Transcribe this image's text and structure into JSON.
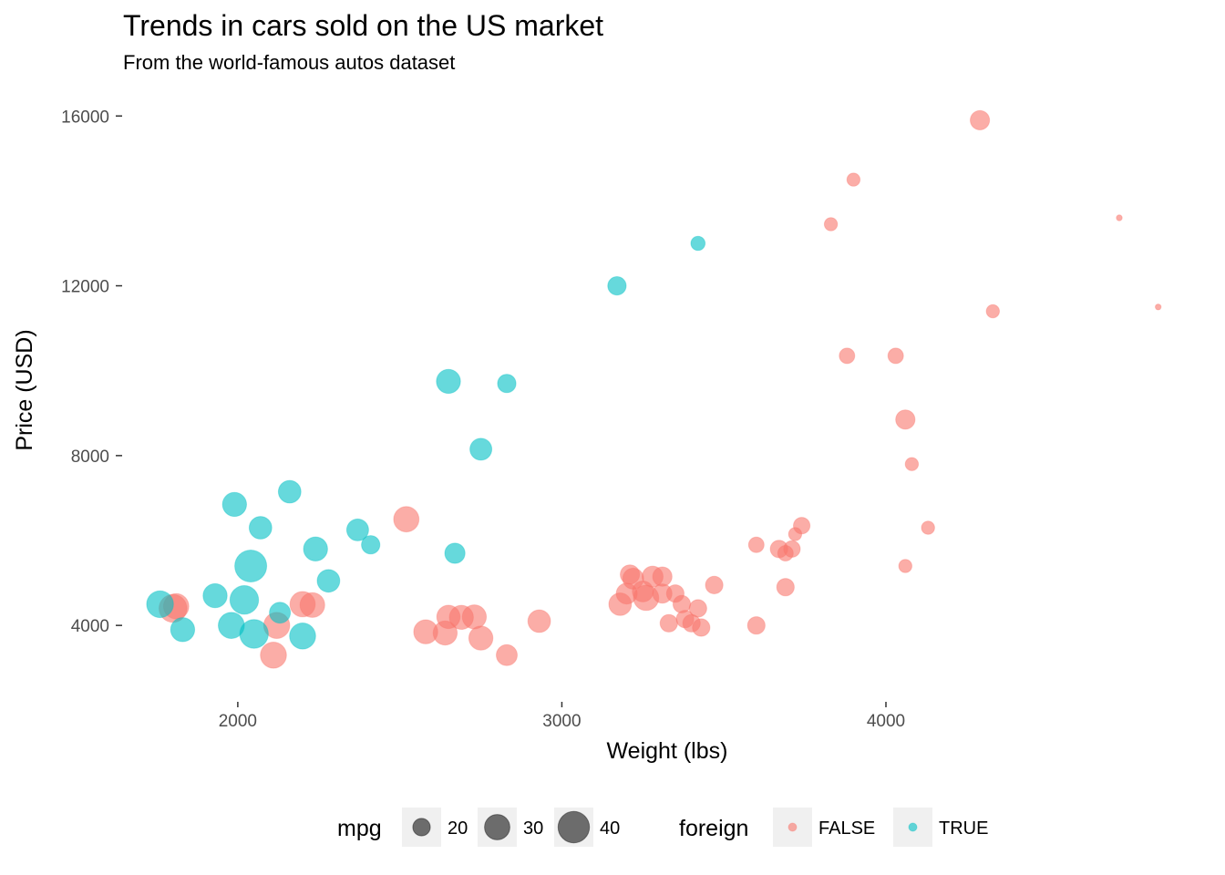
{
  "chart_data": {
    "type": "scatter",
    "title": "Trends in cars sold on the US market",
    "subtitle": "From the world-famous autos dataset",
    "xlabel": "Weight (lbs)",
    "ylabel": "Price (USD)",
    "xlim": [
      1660,
      4900
    ],
    "ylim": [
      2200,
      16800
    ],
    "x_ticks": [
      2000,
      3000,
      4000
    ],
    "y_ticks": [
      4000,
      8000,
      12000,
      16000
    ],
    "grid": false,
    "legend_position": "bottom",
    "size_legend": {
      "title": "mpg",
      "values": [
        20,
        30,
        40
      ]
    },
    "color_legend": {
      "title": "foreign",
      "entries": [
        {
          "label": "FALSE",
          "color": "#F8766D"
        },
        {
          "label": "TRUE",
          "color": "#00BFC4"
        }
      ]
    },
    "series": [
      {
        "name": "FALSE",
        "color": "#F8766D",
        "points": [
          {
            "x": 1800,
            "y": 4400,
            "mpg": 34
          },
          {
            "x": 1810,
            "y": 4450,
            "mpg": 30
          },
          {
            "x": 2110,
            "y": 3300,
            "mpg": 31
          },
          {
            "x": 2120,
            "y": 4000,
            "mpg": 31
          },
          {
            "x": 2200,
            "y": 4500,
            "mpg": 30
          },
          {
            "x": 2230,
            "y": 4480,
            "mpg": 29
          },
          {
            "x": 2520,
            "y": 6500,
            "mpg": 30
          },
          {
            "x": 2580,
            "y": 3850,
            "mpg": 28
          },
          {
            "x": 2640,
            "y": 3820,
            "mpg": 28
          },
          {
            "x": 2650,
            "y": 4200,
            "mpg": 27
          },
          {
            "x": 2690,
            "y": 4190,
            "mpg": 28
          },
          {
            "x": 2730,
            "y": 4200,
            "mpg": 28
          },
          {
            "x": 2750,
            "y": 3700,
            "mpg": 28
          },
          {
            "x": 2830,
            "y": 3300,
            "mpg": 24
          },
          {
            "x": 2930,
            "y": 4100,
            "mpg": 26
          },
          {
            "x": 3180,
            "y": 4500,
            "mpg": 26
          },
          {
            "x": 3200,
            "y": 4750,
            "mpg": 24
          },
          {
            "x": 3210,
            "y": 5200,
            "mpg": 22
          },
          {
            "x": 3220,
            "y": 5100,
            "mpg": 24
          },
          {
            "x": 3250,
            "y": 4800,
            "mpg": 24
          },
          {
            "x": 3260,
            "y": 4650,
            "mpg": 30
          },
          {
            "x": 3280,
            "y": 5150,
            "mpg": 24
          },
          {
            "x": 3310,
            "y": 4750,
            "mpg": 22
          },
          {
            "x": 3310,
            "y": 5150,
            "mpg": 22
          },
          {
            "x": 3330,
            "y": 4050,
            "mpg": 20
          },
          {
            "x": 3350,
            "y": 4750,
            "mpg": 20
          },
          {
            "x": 3370,
            "y": 4500,
            "mpg": 20
          },
          {
            "x": 3380,
            "y": 4150,
            "mpg": 20
          },
          {
            "x": 3400,
            "y": 4050,
            "mpg": 20
          },
          {
            "x": 3420,
            "y": 4400,
            "mpg": 20
          },
          {
            "x": 3430,
            "y": 3950,
            "mpg": 20
          },
          {
            "x": 3470,
            "y": 4950,
            "mpg": 20
          },
          {
            "x": 3600,
            "y": 5900,
            "mpg": 18
          },
          {
            "x": 3600,
            "y": 4000,
            "mpg": 20
          },
          {
            "x": 3670,
            "y": 5800,
            "mpg": 20
          },
          {
            "x": 3690,
            "y": 5700,
            "mpg": 18
          },
          {
            "x": 3690,
            "y": 4900,
            "mpg": 20
          },
          {
            "x": 3710,
            "y": 5800,
            "mpg": 19
          },
          {
            "x": 3720,
            "y": 6150,
            "mpg": 16
          },
          {
            "x": 3740,
            "y": 6350,
            "mpg": 19
          },
          {
            "x": 3830,
            "y": 13450,
            "mpg": 16
          },
          {
            "x": 3880,
            "y": 10350,
            "mpg": 18
          },
          {
            "x": 3900,
            "y": 14500,
            "mpg": 16
          },
          {
            "x": 4030,
            "y": 10350,
            "mpg": 18
          },
          {
            "x": 4060,
            "y": 8850,
            "mpg": 22
          },
          {
            "x": 4060,
            "y": 5400,
            "mpg": 16
          },
          {
            "x": 4080,
            "y": 7800,
            "mpg": 16
          },
          {
            "x": 4130,
            "y": 6300,
            "mpg": 16
          },
          {
            "x": 4290,
            "y": 15900,
            "mpg": 22
          },
          {
            "x": 4330,
            "y": 11400,
            "mpg": 16
          },
          {
            "x": 4720,
            "y": 13600,
            "mpg": 12
          },
          {
            "x": 4840,
            "y": 11500,
            "mpg": 12
          }
        ]
      },
      {
        "name": "TRUE",
        "color": "#00BFC4",
        "points": [
          {
            "x": 1760,
            "y": 4500,
            "mpg": 32
          },
          {
            "x": 1830,
            "y": 3900,
            "mpg": 28
          },
          {
            "x": 1930,
            "y": 4700,
            "mpg": 28
          },
          {
            "x": 1980,
            "y": 4000,
            "mpg": 31
          },
          {
            "x": 1990,
            "y": 6850,
            "mpg": 28
          },
          {
            "x": 2020,
            "y": 4600,
            "mpg": 35
          },
          {
            "x": 2040,
            "y": 5400,
            "mpg": 41
          },
          {
            "x": 2050,
            "y": 3800,
            "mpg": 35
          },
          {
            "x": 2070,
            "y": 6300,
            "mpg": 26
          },
          {
            "x": 2130,
            "y": 4300,
            "mpg": 24
          },
          {
            "x": 2160,
            "y": 7150,
            "mpg": 26
          },
          {
            "x": 2200,
            "y": 3750,
            "mpg": 31
          },
          {
            "x": 2240,
            "y": 5800,
            "mpg": 28
          },
          {
            "x": 2280,
            "y": 5050,
            "mpg": 26
          },
          {
            "x": 2370,
            "y": 6250,
            "mpg": 25
          },
          {
            "x": 2410,
            "y": 5900,
            "mpg": 21
          },
          {
            "x": 2650,
            "y": 9750,
            "mpg": 28
          },
          {
            "x": 2670,
            "y": 5700,
            "mpg": 23
          },
          {
            "x": 2750,
            "y": 8150,
            "mpg": 25
          },
          {
            "x": 2830,
            "y": 9700,
            "mpg": 21
          },
          {
            "x": 3170,
            "y": 12000,
            "mpg": 21
          },
          {
            "x": 3420,
            "y": 13000,
            "mpg": 17
          }
        ]
      }
    ]
  }
}
